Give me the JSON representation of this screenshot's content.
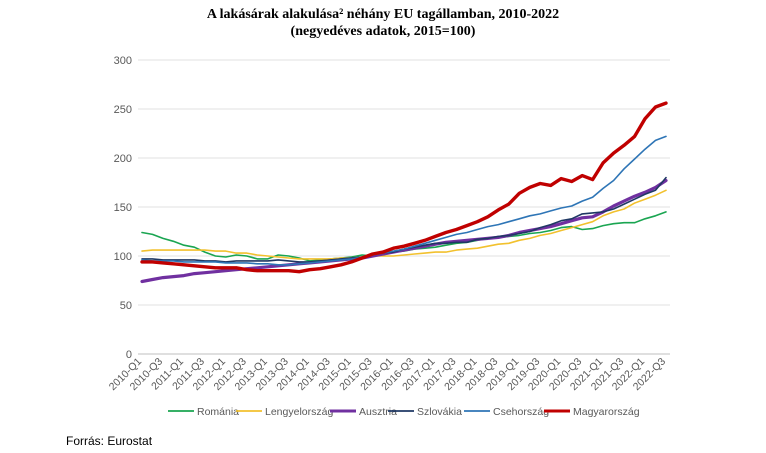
{
  "chart_data": {
    "type": "line",
    "title": "A lakásárak alakulása² néhány EU tagállamban, 2010-2022",
    "subtitle": "(negyedéves adatok, 2015=100)",
    "ylim": [
      0,
      300
    ],
    "yticks": [
      0,
      50,
      100,
      150,
      200,
      250,
      300
    ],
    "grid": true,
    "legend": "bottom",
    "x": [
      "2010-Q1",
      "2010-Q2",
      "2010-Q3",
      "2010-Q4",
      "2011-Q1",
      "2011-Q2",
      "2011-Q3",
      "2011-Q4",
      "2012-Q1",
      "2012-Q2",
      "2012-Q3",
      "2012-Q4",
      "2013-Q1",
      "2013-Q2",
      "2013-Q3",
      "2013-Q4",
      "2014-Q1",
      "2014-Q2",
      "2014-Q3",
      "2014-Q4",
      "2015-Q1",
      "2015-Q2",
      "2015-Q3",
      "2015-Q4",
      "2016-Q1",
      "2016-Q2",
      "2016-Q3",
      "2016-Q4",
      "2017-Q1",
      "2017-Q2",
      "2017-Q3",
      "2017-Q4",
      "2018-Q1",
      "2018-Q2",
      "2018-Q3",
      "2018-Q4",
      "2019-Q1",
      "2019-Q2",
      "2019-Q3",
      "2019-Q4",
      "2020-Q1",
      "2020-Q2",
      "2020-Q3",
      "2020-Q4",
      "2021-Q1",
      "2021-Q2",
      "2021-Q3",
      "2021-Q4",
      "2022-Q1",
      "2022-Q2",
      "2022-Q3"
    ],
    "x_tick_labels": [
      "2010-Q1",
      "2010-Q3",
      "2011-Q1",
      "2011-Q3",
      "2012-Q1",
      "2012-Q3",
      "2013-Q1",
      "2013-Q3",
      "2014-Q1",
      "2014-Q3",
      "2015-Q1",
      "2015-Q3",
      "2016-Q1",
      "2016-Q3",
      "2017-Q1",
      "2017-Q3",
      "2018-Q1",
      "2018-Q3",
      "2019-Q1",
      "2019-Q3",
      "2020-Q1",
      "2020-Q3",
      "2021-Q1",
      "2021-Q3",
      "2022-Q1",
      "2022-Q3"
    ],
    "series": [
      {
        "name": "Románia",
        "color": "#1aa551",
        "width": 1.6,
        "values": [
          124,
          122,
          118,
          115,
          111,
          109,
          104,
          100,
          99,
          101,
          100,
          97,
          97,
          101,
          100,
          98,
          95,
          96,
          97,
          98,
          99,
          101,
          100,
          101,
          104,
          105,
          107,
          108,
          109,
          111,
          113,
          114,
          116,
          118,
          119,
          120,
          121,
          123,
          124,
          126,
          129,
          130,
          127,
          128,
          131,
          133,
          134,
          134,
          138,
          141,
          145
        ]
      },
      {
        "name": "Lengyelország",
        "color": "#f2c12e",
        "width": 1.6,
        "values": [
          105,
          106,
          106,
          106,
          106,
          106,
          106,
          105,
          105,
          103,
          103,
          101,
          100,
          99,
          98,
          97,
          97,
          97,
          97,
          98,
          98,
          99,
          100,
          100,
          100,
          101,
          102,
          103,
          104,
          104,
          106,
          107,
          108,
          110,
          112,
          113,
          116,
          118,
          121,
          123,
          126,
          129,
          132,
          135,
          141,
          145,
          148,
          154,
          158,
          162,
          167
        ]
      },
      {
        "name": "Ausztria",
        "color": "#7030a0",
        "width": 3.2,
        "values": [
          74,
          76,
          78,
          79,
          80,
          82,
          83,
          84,
          85,
          86,
          87,
          88,
          89,
          90,
          91,
          92,
          93,
          94,
          95,
          96,
          97,
          98,
          100,
          102,
          104,
          106,
          108,
          110,
          112,
          114,
          115,
          116,
          117,
          118,
          119,
          121,
          124,
          126,
          128,
          130,
          133,
          136,
          139,
          140,
          145,
          151,
          156,
          161,
          165,
          170,
          177
        ]
      },
      {
        "name": "Szlovákia",
        "color": "#1f3864",
        "width": 1.6,
        "values": [
          97,
          97,
          96,
          96,
          96,
          96,
          95,
          95,
          94,
          95,
          95,
          95,
          95,
          96,
          95,
          94,
          94,
          95,
          96,
          97,
          98,
          99,
          101,
          103,
          104,
          107,
          109,
          111,
          113,
          113,
          114,
          114,
          117,
          118,
          120,
          121,
          123,
          125,
          129,
          132,
          136,
          138,
          143,
          144,
          145,
          148,
          153,
          158,
          163,
          167,
          180
        ]
      },
      {
        "name": "Csehország",
        "color": "#2e75b6",
        "width": 1.6,
        "values": [
          96,
          95,
          95,
          95,
          94,
          94,
          94,
          94,
          93,
          93,
          93,
          92,
          92,
          91,
          91,
          92,
          93,
          94,
          95,
          96,
          97,
          99,
          101,
          103,
          105,
          107,
          110,
          113,
          116,
          119,
          122,
          124,
          127,
          130,
          132,
          135,
          138,
          141,
          143,
          146,
          149,
          151,
          156,
          160,
          169,
          177,
          189,
          199,
          209,
          218,
          222
        ]
      },
      {
        "name": "Magyarország",
        "color": "#c00000",
        "width": 3.4,
        "values": [
          94,
          94,
          93,
          92,
          91,
          90,
          89,
          88,
          88,
          88,
          86,
          85,
          85,
          85,
          85,
          84,
          86,
          87,
          89,
          91,
          94,
          98,
          102,
          104,
          108,
          110,
          113,
          116,
          120,
          124,
          127,
          131,
          135,
          140,
          147,
          153,
          164,
          170,
          174,
          172,
          179,
          176,
          182,
          178,
          195,
          205,
          213,
          222,
          240,
          252,
          256
        ]
      }
    ],
    "source": "Forrás: Eurostat"
  }
}
